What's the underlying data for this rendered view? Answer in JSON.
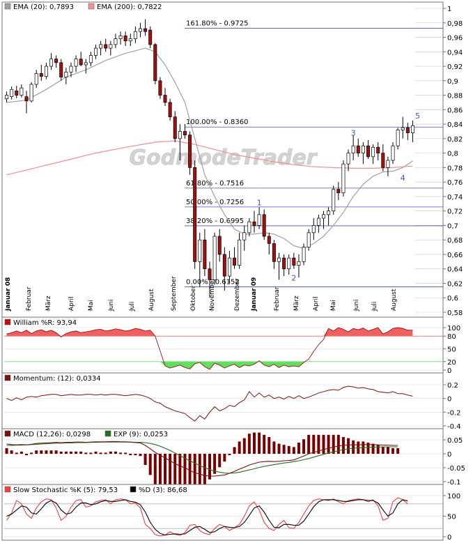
{
  "colors": {
    "ema20": "#a0a0a0",
    "ema200": "#f09090",
    "fib": "#4050c0",
    "candle_up": "#ffffff",
    "candle_down": "#a01010",
    "williams_fill_high": "#f06060",
    "williams_fill_low": "#60e060",
    "williams_line": "#a01010",
    "momentum": "#7a1010",
    "macd_hist": "#7a0000",
    "macd_line": "#7a1010",
    "exp_line": "#207020",
    "stoch_k": "#f04040",
    "stoch_d": "#000000",
    "grid": "#d8d8d8",
    "panel_border": "#707070"
  },
  "watermark": "GodmodeTrader",
  "main_legend": [
    {
      "label": "EMA (20): 0,7893",
      "color": "#a0a0a0"
    },
    {
      "label": "EMA (200): 0,7822",
      "color": "#f09090"
    }
  ],
  "williams_legend": {
    "label": "William %R: 93,94",
    "color": "#c01010"
  },
  "momentum_legend": {
    "label": "Momentum: (12): 0,0334",
    "color": "#7a1010"
  },
  "macd_legend": [
    {
      "label": "MACD (12,26): 0,0298",
      "color": "#7a1010"
    },
    {
      "label": "EXP (9): 0,0253",
      "color": "#207020"
    }
  ],
  "stoch_legend": [
    {
      "label": "Slow Stochastic %K (5): 79,53",
      "color": "#f04040"
    },
    {
      "label": "%D (3): 86,68",
      "color": "#000000"
    }
  ],
  "chart_data": {
    "type": "candlestick",
    "instrument": "",
    "y_axis": {
      "range": [
        0.58,
        1.0
      ],
      "ticks": [
        "1",
        "0,98",
        "0,96",
        "0,94",
        "0,92",
        "0,9",
        "0,88",
        "0,86",
        "0,84",
        "0,82",
        "0,8",
        "0,78",
        "0,76",
        "0,74",
        "0,72",
        "0,7",
        "0,68",
        "0,66",
        "0,64",
        "0,62",
        "0,6",
        "0,58"
      ]
    },
    "x_axis_labels": [
      {
        "label": "Januar 08",
        "bold": true
      },
      {
        "label": "Februar",
        "bold": false
      },
      {
        "label": "März",
        "bold": false
      },
      {
        "label": "April",
        "bold": false
      },
      {
        "label": "Mai",
        "bold": false
      },
      {
        "label": "Juni",
        "bold": false
      },
      {
        "label": "Juli",
        "bold": false
      },
      {
        "label": "August",
        "bold": false
      },
      {
        "label": "September",
        "bold": false
      },
      {
        "label": "Oktober",
        "bold": false
      },
      {
        "label": "November",
        "bold": false
      },
      {
        "label": "Dezember",
        "bold": false
      },
      {
        "label": "Januar 09",
        "bold": true
      },
      {
        "label": "Februar",
        "bold": false
      },
      {
        "label": "März",
        "bold": false
      },
      {
        "label": "April",
        "bold": false
      },
      {
        "label": "Mai",
        "bold": false
      },
      {
        "label": "Juni",
        "bold": false
      },
      {
        "label": "Juli",
        "bold": false
      },
      {
        "label": "August",
        "bold": false
      }
    ],
    "fibonacci_levels": [
      {
        "label": "161.80% - 0.9725",
        "value": 0.9725
      },
      {
        "label": "100.00% - 0.8360",
        "value": 0.836
      },
      {
        "label": "61.80% - 0.7516",
        "value": 0.7516
      },
      {
        "label": "50.00% - 0.7256",
        "value": 0.7256
      },
      {
        "label": "38.20% - 0.6995",
        "value": 0.6995
      },
      {
        "label": "0.00% - 0.6152",
        "value": 0.6152
      }
    ],
    "wave_labels": [
      {
        "label": "1",
        "week": 51,
        "value": 0.728
      },
      {
        "label": "2",
        "week": 58,
        "value": 0.624
      },
      {
        "label": "3",
        "week": 70,
        "value": 0.824
      },
      {
        "label": "4",
        "week": 80,
        "value": 0.762
      },
      {
        "label": "5",
        "week": 83,
        "value": 0.848
      }
    ],
    "weekly_ohlc": [
      [
        0.875,
        0.885,
        0.87,
        0.88
      ],
      [
        0.878,
        0.892,
        0.874,
        0.888
      ],
      [
        0.886,
        0.893,
        0.876,
        0.88
      ],
      [
        0.88,
        0.895,
        0.877,
        0.89
      ],
      [
        0.878,
        0.886,
        0.855,
        0.872
      ],
      [
        0.872,
        0.898,
        0.87,
        0.895
      ],
      [
        0.895,
        0.915,
        0.89,
        0.91
      ],
      [
        0.91,
        0.922,
        0.9,
        0.906
      ],
      [
        0.906,
        0.925,
        0.902,
        0.92
      ],
      [
        0.92,
        0.938,
        0.915,
        0.93
      ],
      [
        0.93,
        0.935,
        0.918,
        0.925
      ],
      [
        0.925,
        0.93,
        0.9,
        0.905
      ],
      [
        0.905,
        0.918,
        0.895,
        0.912
      ],
      [
        0.912,
        0.925,
        0.905,
        0.92
      ],
      [
        0.92,
        0.935,
        0.912,
        0.93
      ],
      [
        0.93,
        0.94,
        0.92,
        0.922
      ],
      [
        0.922,
        0.93,
        0.91,
        0.925
      ],
      [
        0.925,
        0.94,
        0.92,
        0.935
      ],
      [
        0.935,
        0.95,
        0.93,
        0.945
      ],
      [
        0.945,
        0.955,
        0.935,
        0.95
      ],
      [
        0.95,
        0.958,
        0.94,
        0.945
      ],
      [
        0.945,
        0.955,
        0.935,
        0.95
      ],
      [
        0.95,
        0.965,
        0.945,
        0.958
      ],
      [
        0.958,
        0.968,
        0.95,
        0.962
      ],
      [
        0.962,
        0.968,
        0.948,
        0.955
      ],
      [
        0.955,
        0.965,
        0.948,
        0.958
      ],
      [
        0.958,
        0.975,
        0.952,
        0.968
      ],
      [
        0.968,
        0.98,
        0.96,
        0.972
      ],
      [
        0.972,
        0.985,
        0.962,
        0.968
      ],
      [
        0.97,
        0.975,
        0.945,
        0.95
      ],
      [
        0.95,
        0.952,
        0.895,
        0.9
      ],
      [
        0.9,
        0.905,
        0.875,
        0.88
      ],
      [
        0.88,
        0.89,
        0.865,
        0.87
      ],
      [
        0.87,
        0.875,
        0.845,
        0.85
      ],
      [
        0.85,
        0.858,
        0.815,
        0.82
      ],
      [
        0.82,
        0.84,
        0.79,
        0.83
      ],
      [
        0.83,
        0.84,
        0.82,
        0.825
      ],
      [
        0.825,
        0.83,
        0.77,
        0.78
      ],
      [
        0.78,
        0.79,
        0.64,
        0.65
      ],
      [
        0.65,
        0.69,
        0.615,
        0.68
      ],
      [
        0.68,
        0.695,
        0.63,
        0.64
      ],
      [
        0.64,
        0.65,
        0.6,
        0.625
      ],
      [
        0.625,
        0.69,
        0.618,
        0.685
      ],
      [
        0.685,
        0.695,
        0.65,
        0.66
      ],
      [
        0.66,
        0.67,
        0.61,
        0.63
      ],
      [
        0.63,
        0.665,
        0.62,
        0.655
      ],
      [
        0.655,
        0.67,
        0.64,
        0.645
      ],
      [
        0.645,
        0.69,
        0.64,
        0.68
      ],
      [
        0.68,
        0.7,
        0.665,
        0.69
      ],
      [
        0.69,
        0.71,
        0.685,
        0.705
      ],
      [
        0.705,
        0.72,
        0.69,
        0.7
      ],
      [
        0.7,
        0.725,
        0.695,
        0.715
      ],
      [
        0.715,
        0.722,
        0.68,
        0.685
      ],
      [
        0.685,
        0.69,
        0.66,
        0.675
      ],
      [
        0.675,
        0.68,
        0.64,
        0.65
      ],
      [
        0.65,
        0.662,
        0.625,
        0.655
      ],
      [
        0.655,
        0.66,
        0.63,
        0.64
      ],
      [
        0.64,
        0.66,
        0.632,
        0.655
      ],
      [
        0.655,
        0.662,
        0.64,
        0.645
      ],
      [
        0.645,
        0.66,
        0.628,
        0.65
      ],
      [
        0.65,
        0.675,
        0.645,
        0.67
      ],
      [
        0.67,
        0.695,
        0.665,
        0.69
      ],
      [
        0.69,
        0.71,
        0.68,
        0.7
      ],
      [
        0.7,
        0.715,
        0.69,
        0.71
      ],
      [
        0.71,
        0.72,
        0.695,
        0.715
      ],
      [
        0.715,
        0.725,
        0.7,
        0.72
      ],
      [
        0.72,
        0.755,
        0.715,
        0.75
      ],
      [
        0.75,
        0.76,
        0.735,
        0.745
      ],
      [
        0.745,
        0.79,
        0.74,
        0.785
      ],
      [
        0.785,
        0.805,
        0.775,
        0.8
      ],
      [
        0.8,
        0.825,
        0.79,
        0.81
      ],
      [
        0.81,
        0.82,
        0.795,
        0.8
      ],
      [
        0.8,
        0.815,
        0.785,
        0.81
      ],
      [
        0.81,
        0.818,
        0.792,
        0.795
      ],
      [
        0.795,
        0.812,
        0.785,
        0.808
      ],
      [
        0.808,
        0.815,
        0.79,
        0.8
      ],
      [
        0.8,
        0.812,
        0.775,
        0.78
      ],
      [
        0.78,
        0.795,
        0.768,
        0.79
      ],
      [
        0.79,
        0.815,
        0.785,
        0.81
      ],
      [
        0.81,
        0.835,
        0.805,
        0.832
      ],
      [
        0.832,
        0.85,
        0.82,
        0.835
      ],
      [
        0.835,
        0.842,
        0.818,
        0.828
      ],
      [
        0.828,
        0.845,
        0.815,
        0.838
      ]
    ],
    "ema20": [
      [
        0,
        0.87
      ],
      [
        4,
        0.873
      ],
      [
        8,
        0.888
      ],
      [
        12,
        0.905
      ],
      [
        16,
        0.915
      ],
      [
        20,
        0.928
      ],
      [
        24,
        0.938
      ],
      [
        28,
        0.945
      ],
      [
        30,
        0.94
      ],
      [
        32,
        0.922
      ],
      [
        34,
        0.898
      ],
      [
        36,
        0.87
      ],
      [
        38,
        0.82
      ],
      [
        40,
        0.77
      ],
      [
        42,
        0.74
      ],
      [
        44,
        0.715
      ],
      [
        46,
        0.695
      ],
      [
        48,
        0.688
      ],
      [
        50,
        0.688
      ],
      [
        52,
        0.69
      ],
      [
        54,
        0.688
      ],
      [
        56,
        0.682
      ],
      [
        58,
        0.672
      ],
      [
        60,
        0.668
      ],
      [
        62,
        0.675
      ],
      [
        64,
        0.685
      ],
      [
        66,
        0.7
      ],
      [
        68,
        0.718
      ],
      [
        70,
        0.74
      ],
      [
        72,
        0.757
      ],
      [
        74,
        0.768
      ],
      [
        76,
        0.774
      ],
      [
        78,
        0.775
      ],
      [
        80,
        0.78
      ],
      [
        82,
        0.789
      ]
    ],
    "ema200": [
      [
        0,
        0.77
      ],
      [
        6,
        0.78
      ],
      [
        12,
        0.79
      ],
      [
        18,
        0.8
      ],
      [
        24,
        0.808
      ],
      [
        30,
        0.815
      ],
      [
        34,
        0.817
      ],
      [
        38,
        0.812
      ],
      [
        42,
        0.805
      ],
      [
        46,
        0.798
      ],
      [
        50,
        0.793
      ],
      [
        54,
        0.788
      ],
      [
        58,
        0.784
      ],
      [
        62,
        0.781
      ],
      [
        66,
        0.78
      ],
      [
        70,
        0.779
      ],
      [
        74,
        0.779
      ],
      [
        78,
        0.78
      ],
      [
        82,
        0.782
      ]
    ]
  },
  "williams": {
    "axis": [
      "100",
      "80",
      "50",
      "20",
      "0"
    ],
    "values": [
      85,
      88,
      92,
      88,
      94,
      86,
      92,
      95,
      90,
      94,
      88,
      78,
      86,
      90,
      92,
      88,
      90,
      92,
      95,
      96,
      92,
      94,
      97,
      95,
      92,
      94,
      98,
      96,
      92,
      94,
      80,
      45,
      10,
      5,
      8,
      12,
      6,
      3,
      15,
      18,
      8,
      2,
      16,
      12,
      5,
      10,
      14,
      6,
      12,
      10,
      14,
      22,
      12,
      8,
      14,
      6,
      12,
      8,
      10,
      8,
      18,
      26,
      44,
      60,
      72,
      98,
      92,
      100,
      96,
      90,
      98,
      95,
      99,
      92,
      96,
      100,
      85,
      90,
      98,
      100,
      98,
      94,
      94
    ]
  },
  "momentum": {
    "axis": [
      "0.2",
      "0",
      "-0.2",
      "-0.4"
    ],
    "values": [
      0.0,
      -0.03,
      0.01,
      -0.02,
      0.02,
      0.03,
      0.02,
      0.04,
      0.05,
      0.06,
      0.06,
      0.04,
      0.05,
      0.06,
      0.05,
      0.05,
      0.06,
      0.06,
      0.05,
      0.06,
      0.05,
      0.06,
      0.06,
      0.05,
      0.04,
      0.05,
      0.06,
      0.05,
      0.03,
      0.0,
      -0.05,
      -0.07,
      -0.12,
      -0.15,
      -0.18,
      -0.2,
      -0.22,
      -0.28,
      -0.33,
      -0.25,
      -0.3,
      -0.2,
      -0.12,
      -0.18,
      -0.15,
      -0.1,
      -0.12,
      -0.06,
      -0.02,
      0.1,
      0.02,
      0.08,
      0.02,
      0.05,
      0.0,
      0.02,
      -0.01,
      0.03,
      0.0,
      0.04,
      0.0,
      0.02,
      0.05,
      0.08,
      0.1,
      0.12,
      0.13,
      0.12,
      0.16,
      0.18,
      0.17,
      0.15,
      0.16,
      0.14,
      0.13,
      0.1,
      0.09,
      0.08,
      0.1,
      0.07,
      0.07,
      0.05,
      0.033
    ]
  },
  "macd": {
    "axis": [
      "0.05",
      "0",
      "-0.05",
      "-0.1"
    ],
    "macd": [
      0.035,
      0.033,
      0.032,
      0.033,
      0.032,
      0.034,
      0.037,
      0.038,
      0.039,
      0.04,
      0.041,
      0.04,
      0.041,
      0.041,
      0.042,
      0.042,
      0.041,
      0.042,
      0.043,
      0.043,
      0.043,
      0.044,
      0.044,
      0.043,
      0.043,
      0.042,
      0.04,
      0.039,
      0.03,
      0.018,
      0.005,
      -0.005,
      -0.015,
      -0.025,
      -0.035,
      -0.044,
      -0.05,
      -0.06,
      -0.068,
      -0.073,
      -0.078,
      -0.08,
      -0.08,
      -0.078,
      -0.076,
      -0.07,
      -0.063,
      -0.055,
      -0.048,
      -0.04,
      -0.035,
      -0.03,
      -0.028,
      -0.027,
      -0.028,
      -0.027,
      -0.025,
      -0.024,
      -0.022,
      -0.015,
      -0.008,
      0.0,
      0.005,
      0.01,
      0.015,
      0.02,
      0.024,
      0.028,
      0.03,
      0.032,
      0.032,
      0.032,
      0.033,
      0.033,
      0.033,
      0.032,
      0.031,
      0.031,
      0.03,
      0.03
    ],
    "signal": [
      0.03,
      0.03,
      0.031,
      0.031,
      0.032,
      0.033,
      0.034,
      0.035,
      0.036,
      0.037,
      0.038,
      0.038,
      0.039,
      0.039,
      0.04,
      0.04,
      0.04,
      0.041,
      0.041,
      0.042,
      0.042,
      0.042,
      0.042,
      0.042,
      0.042,
      0.042,
      0.041,
      0.041,
      0.04,
      0.037,
      0.033,
      0.027,
      0.02,
      0.012,
      0.003,
      -0.007,
      -0.016,
      -0.025,
      -0.034,
      -0.042,
      -0.05,
      -0.057,
      -0.062,
      -0.066,
      -0.069,
      -0.07,
      -0.069,
      -0.066,
      -0.062,
      -0.058,
      -0.054,
      -0.049,
      -0.045,
      -0.042,
      -0.039,
      -0.036,
      -0.033,
      -0.031,
      -0.028,
      -0.025,
      -0.021,
      -0.017,
      -0.012,
      -0.007,
      -0.002,
      0.003,
      0.007,
      0.011,
      0.015,
      0.018,
      0.02,
      0.021,
      0.022,
      0.023,
      0.024,
      0.024,
      0.025,
      0.025,
      0.025,
      0.025
    ]
  },
  "stochastic": {
    "axis": [
      "100",
      "50",
      "0"
    ],
    "k": [
      40,
      58,
      88,
      80,
      55,
      45,
      70,
      85,
      92,
      90,
      70,
      40,
      50,
      72,
      88,
      90,
      72,
      75,
      85,
      88,
      90,
      80,
      90,
      92,
      90,
      80,
      82,
      70,
      30,
      20,
      5,
      2,
      4,
      12,
      6,
      3,
      10,
      28,
      30,
      15,
      8,
      5,
      20,
      30,
      25,
      15,
      22,
      30,
      50,
      75,
      85,
      65,
      35,
      20,
      15,
      30,
      40,
      22,
      20,
      35,
      55,
      75,
      88,
      92,
      90,
      88,
      92,
      85,
      80,
      88,
      90,
      92,
      90,
      85,
      90,
      75,
      40,
      45,
      85,
      95,
      90,
      80
    ],
    "d": [
      50,
      55,
      65,
      75,
      72,
      58,
      55,
      68,
      82,
      88,
      82,
      65,
      55,
      58,
      72,
      82,
      82,
      78,
      80,
      85,
      88,
      86,
      86,
      88,
      90,
      86,
      84,
      78,
      60,
      35,
      18,
      8,
      4,
      6,
      7,
      6,
      7,
      15,
      23,
      25,
      18,
      10,
      12,
      20,
      25,
      23,
      22,
      25,
      35,
      52,
      70,
      75,
      60,
      40,
      23,
      22,
      30,
      30,
      28,
      28,
      38,
      55,
      73,
      85,
      90,
      90,
      90,
      88,
      86,
      86,
      88,
      90,
      90,
      88,
      88,
      82,
      65,
      50,
      58,
      80,
      90,
      87
    ]
  }
}
